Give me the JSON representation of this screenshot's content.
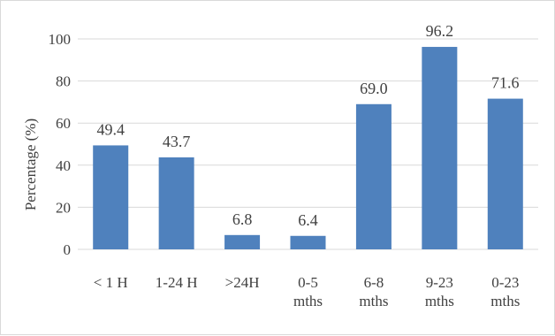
{
  "chart_data": {
    "type": "bar",
    "categories": [
      [
        "< 1 H"
      ],
      [
        "1-24 H"
      ],
      [
        ">24H"
      ],
      [
        "0-5",
        "mths"
      ],
      [
        "6-8",
        "mths"
      ],
      [
        "9-23",
        "mths"
      ],
      [
        "0-23",
        "mths"
      ]
    ],
    "values": [
      49.4,
      43.7,
      6.8,
      6.4,
      69.0,
      96.2,
      71.6
    ],
    "value_labels": [
      "49.4",
      "43.7",
      "6.8",
      "6.4",
      "69.0",
      "96.2",
      "71.6"
    ],
    "xlabel": "",
    "ylabel": "Percentage (%)",
    "ylim": [
      0,
      100
    ],
    "yticks": [
      0,
      20,
      40,
      60,
      80,
      100
    ],
    "grid": true,
    "legend": "none",
    "colors": {
      "bar": "#4f81bd",
      "grid": "#d9d9d9",
      "text": "#404040"
    }
  }
}
